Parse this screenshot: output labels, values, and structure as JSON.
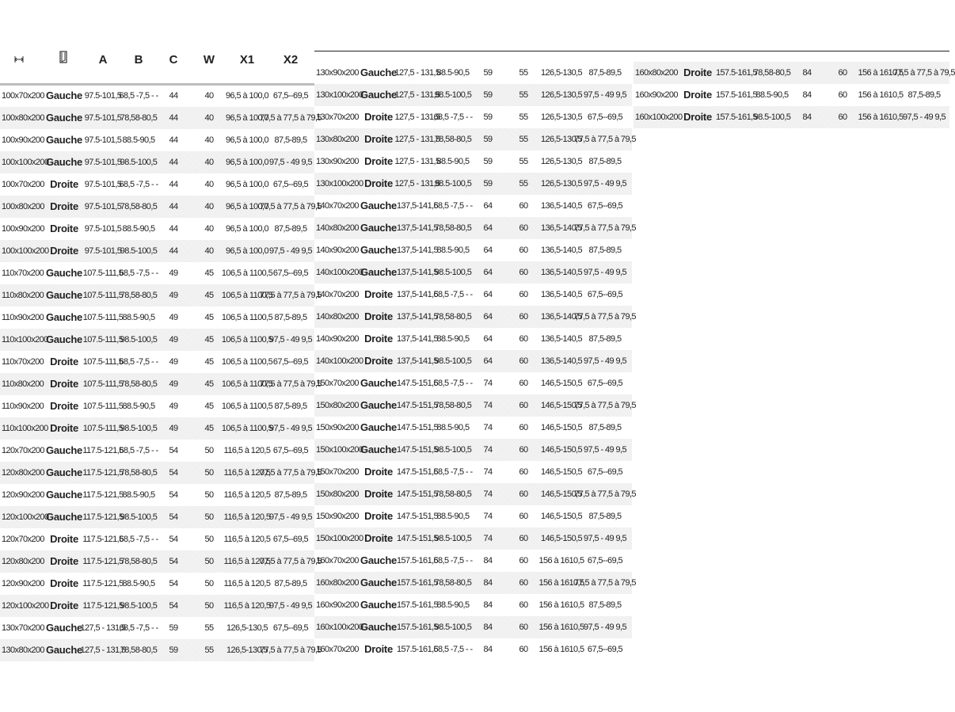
{
  "header": {
    "width_icon": "width-arrows-icon",
    "door_icon": "door-icon",
    "columns": [
      "A",
      "B",
      "C",
      "W",
      "X1",
      "X2"
    ]
  },
  "columns_panels": [
    {
      "rows": [
        [
          "100x70x200",
          "Gauche",
          "97.5-101,5",
          "68,5 -7,5 - -",
          "44",
          "40",
          "96,5 à 100,0",
          "67,5--69,5"
        ],
        [
          "100x80x200",
          "Gauche",
          "97.5-101,5",
          "78,58-80,5",
          "44",
          "40",
          "96,5 à 100,0",
          "77,5 à 77,5 à 79,5"
        ],
        [
          "100x90x200",
          "Gauche",
          "97.5-101,5",
          "88.5-90,5",
          "44",
          "40",
          "96,5 à 100,0",
          "87,5-89,5"
        ],
        [
          "100x100x200",
          "Gauche",
          "97.5-101,5",
          "98.5-100,5",
          "44",
          "40",
          "96,5 à 100,0",
          "97,5 - 49 9,5"
        ],
        [
          "100x70x200",
          "Droite",
          "97.5-101,5",
          "68,5 -7,5 - -",
          "44",
          "40",
          "96,5 à 100,0",
          "67,5--69,5"
        ],
        [
          "100x80x200",
          "Droite",
          "97.5-101,5",
          "78,58-80,5",
          "44",
          "40",
          "96,5 à 100,0",
          "77,5 à 77,5 à 79,5"
        ],
        [
          "100x90x200",
          "Droite",
          "97.5-101,5",
          "88.5-90,5",
          "44",
          "40",
          "96,5 à 100,0",
          "87,5-89,5"
        ],
        [
          "100x100x200",
          "Droite",
          "97.5-101,5",
          "98.5-100,5",
          "44",
          "40",
          "96,5 à 100,0",
          "97,5 - 49 9,5"
        ],
        [
          "110x70x200",
          "Gauche",
          "107.5-111,5",
          "68,5 -7,5 - -",
          "49",
          "45",
          "106,5 à 1100,5",
          "67,5--69,5"
        ],
        [
          "110x80x200",
          "Gauche",
          "107.5-111,5",
          "78,58-80,5",
          "49",
          "45",
          "106,5 à 1100,5",
          "77,5 à 77,5 à 79,5"
        ],
        [
          "110x90x200",
          "Gauche",
          "107.5-111,5",
          "88.5-90,5",
          "49",
          "45",
          "106,5 à 1100,5",
          "87,5-89,5"
        ],
        [
          "110x100x200",
          "Gauche",
          "107.5-111,5",
          "98.5-100,5",
          "49",
          "45",
          "106,5 à 1100,5",
          "97,5 - 49 9,5"
        ],
        [
          "110x70x200",
          "Droite",
          "107.5-111,5",
          "68,5 -7,5 - -",
          "49",
          "45",
          "106,5 à 1100,5",
          "67,5--69,5"
        ],
        [
          "110x80x200",
          "Droite",
          "107.5-111,5",
          "78,58-80,5",
          "49",
          "45",
          "106,5 à 1100,5",
          "77,5 à 77,5 à 79,5"
        ],
        [
          "110x90x200",
          "Droite",
          "107.5-111,5",
          "88.5-90,5",
          "49",
          "45",
          "106,5 à 1100,5",
          "87,5-89,5"
        ],
        [
          "110x100x200",
          "Droite",
          "107.5-111,5",
          "98.5-100,5",
          "49",
          "45",
          "106,5 à 1100,5",
          "97,5 - 49 9,5"
        ],
        [
          "120x70x200",
          "Gauche",
          "117.5-121,5",
          "68,5 -7,5 - -",
          "54",
          "50",
          "116,5 à 120,5",
          "67,5--69,5"
        ],
        [
          "120x80x200",
          "Gauche",
          "117.5-121,5",
          "78,58-80,5",
          "54",
          "50",
          "116,5 à 120,5",
          "77,5 à 77,5 à 79,5"
        ],
        [
          "120x90x200",
          "Gauche",
          "117.5-121,5",
          "88.5-90,5",
          "54",
          "50",
          "116,5 à 120,5",
          "87,5-89,5"
        ],
        [
          "120x100x200",
          "Gauche",
          "117.5-121,5",
          "98.5-100,5",
          "54",
          "50",
          "116,5 à 120,5",
          "97,5 - 49 9,5"
        ],
        [
          "120x70x200",
          "Droite",
          "117.5-121,5",
          "68,5 -7,5 - -",
          "54",
          "50",
          "116,5 à 120,5",
          "67,5--69,5"
        ],
        [
          "120x80x200",
          "Droite",
          "117.5-121,5",
          "78,58-80,5",
          "54",
          "50",
          "116,5 à 120,5",
          "77,5 à 77,5 à 79,5"
        ],
        [
          "120x90x200",
          "Droite",
          "117.5-121,5",
          "88.5-90,5",
          "54",
          "50",
          "116,5 à 120,5",
          "87,5-89,5"
        ],
        [
          "120x100x200",
          "Droite",
          "117.5-121,5",
          "98.5-100,5",
          "54",
          "50",
          "116,5 à 120,5",
          "97,5 - 49 9,5"
        ],
        [
          "130x70x200",
          "Gauche",
          "127,5 - 131,5",
          "68,5 -7,5 - -",
          "59",
          "55",
          "126,5-130,5",
          "67,5--69,5"
        ],
        [
          "130x80x200",
          "Gauche",
          "127,5 - 131,5",
          "78,58-80,5",
          "59",
          "55",
          "126,5-130,5",
          "77,5 à 77,5 à 79,5"
        ]
      ]
    },
    {
      "rows": [
        [
          "130x90x200",
          "Gauche",
          "127,5 - 131,5",
          "88.5-90,5",
          "59",
          "55",
          "126,5-130,5",
          "87,5-89,5"
        ],
        [
          "130x100x200",
          "Gauche",
          "127,5 - 131,5",
          "98.5-100,5",
          "59",
          "55",
          "126,5-130,5",
          "97,5 - 49 9,5"
        ],
        [
          "130x70x200",
          "Droite",
          "127,5 - 131,5",
          "68,5 -7,5 - -",
          "59",
          "55",
          "126,5-130,5",
          "67,5--69,5"
        ],
        [
          "130x80x200",
          "Droite",
          "127,5 - 131,5",
          "78,58-80,5",
          "59",
          "55",
          "126,5-130,5",
          "77,5 à 77,5 à 79,5"
        ],
        [
          "130x90x200",
          "Droite",
          "127,5 - 131,5",
          "88.5-90,5",
          "59",
          "55",
          "126,5-130,5",
          "87,5-89,5"
        ],
        [
          "130x100x200",
          "Droite",
          "127,5 - 131,5",
          "98.5-100,5",
          "59",
          "55",
          "126,5-130,5",
          "97,5 - 49 9,5"
        ],
        [
          "140x70x200",
          "Gauche",
          "137,5-141,5",
          "68,5 -7,5 - -",
          "64",
          "60",
          "136,5-140,5",
          "67,5--69,5"
        ],
        [
          "140x80x200",
          "Gauche",
          "137,5-141,5",
          "78,58-80,5",
          "64",
          "60",
          "136,5-140,5",
          "77,5 à 77,5 à 79,5"
        ],
        [
          "140x90x200",
          "Gauche",
          "137,5-141,5",
          "88.5-90,5",
          "64",
          "60",
          "136,5-140,5",
          "87,5-89,5"
        ],
        [
          "140x100x200",
          "Gauche",
          "137,5-141,5",
          "98.5-100,5",
          "64",
          "60",
          "136,5-140,5",
          "97,5 - 49 9,5"
        ],
        [
          "140x70x200",
          "Droite",
          "137,5-141,5",
          "68,5 -7,5 - -",
          "64",
          "60",
          "136,5-140,5",
          "67,5--69,5"
        ],
        [
          "140x80x200",
          "Droite",
          "137,5-141,5",
          "78,58-80,5",
          "64",
          "60",
          "136,5-140,5",
          "77,5 à 77,5 à 79,5"
        ],
        [
          "140x90x200",
          "Droite",
          "137,5-141,5",
          "88.5-90,5",
          "64",
          "60",
          "136,5-140,5",
          "87,5-89,5"
        ],
        [
          "140x100x200",
          "Droite",
          "137,5-141,5",
          "98.5-100,5",
          "64",
          "60",
          "136,5-140,5",
          "97,5 - 49 9,5"
        ],
        [
          "150x70x200",
          "Gauche",
          "147.5-151,5",
          "68,5 -7,5 - -",
          "74",
          "60",
          "146,5-150,5",
          "67,5--69,5"
        ],
        [
          "150x80x200",
          "Gauche",
          "147.5-151,5",
          "78,58-80,5",
          "74",
          "60",
          "146,5-150,5",
          "77,5 à 77,5 à 79,5"
        ],
        [
          "150x90x200",
          "Gauche",
          "147.5-151,5",
          "88.5-90,5",
          "74",
          "60",
          "146,5-150,5",
          "87,5-89,5"
        ],
        [
          "150x100x200",
          "Gauche",
          "147.5-151,5",
          "98.5-100,5",
          "74",
          "60",
          "146,5-150,5",
          "97,5 - 49 9,5"
        ],
        [
          "150x70x200",
          "Droite",
          "147.5-151,5",
          "68,5 -7,5 - -",
          "74",
          "60",
          "146,5-150,5",
          "67,5--69,5"
        ],
        [
          "150x80x200",
          "Droite",
          "147.5-151,5",
          "78,58-80,5",
          "74",
          "60",
          "146,5-150,5",
          "77,5 à 77,5 à 79,5"
        ],
        [
          "150x90x200",
          "Droite",
          "147.5-151,5",
          "88.5-90,5",
          "74",
          "60",
          "146,5-150,5",
          "87,5-89,5"
        ],
        [
          "150x100x200",
          "Droite",
          "147.5-151,5",
          "98.5-100,5",
          "74",
          "60",
          "146,5-150,5",
          "97,5 - 49 9,5"
        ],
        [
          "160x70x200",
          "Gauche",
          "157.5-161,5",
          "68,5 -7,5 - -",
          "84",
          "60",
          "156 à 1610,5",
          "67,5--69,5"
        ],
        [
          "160x80x200",
          "Gauche",
          "157.5-161,5",
          "78,58-80,5",
          "84",
          "60",
          "156 à 1610,5",
          "77,5 à 77,5 à 79,5"
        ],
        [
          "160x90x200",
          "Gauche",
          "157.5-161,5",
          "88.5-90,5",
          "84",
          "60",
          "156 à 1610,5",
          "87,5-89,5"
        ],
        [
          "160x100x200",
          "Gauche",
          "157.5-161,5",
          "98.5-100,5",
          "84",
          "60",
          "156 à 1610,5",
          "97,5 - 49 9,5"
        ],
        [
          "160x70x200",
          "Droite",
          "157.5-161,5",
          "68,5 -7,5 - -",
          "84",
          "60",
          "156 à 1610,5",
          "67,5--69,5"
        ]
      ]
    },
    {
      "rows": [
        [
          "160x80x200",
          "Droite",
          "157.5-161,5",
          "78,58-80,5",
          "84",
          "60",
          "156 à 1610,5",
          "77,5 à 77,5 à 79,5"
        ],
        [
          "160x90x200",
          "Droite",
          "157.5-161,5",
          "88.5-90,5",
          "84",
          "60",
          "156 à 1610,5",
          "87,5-89,5"
        ],
        [
          "160x100x200",
          "Droite",
          "157.5-161,5",
          "98.5-100,5",
          "84",
          "60",
          "156 à 1610,5",
          "97,5 - 49 9,5"
        ]
      ]
    }
  ]
}
